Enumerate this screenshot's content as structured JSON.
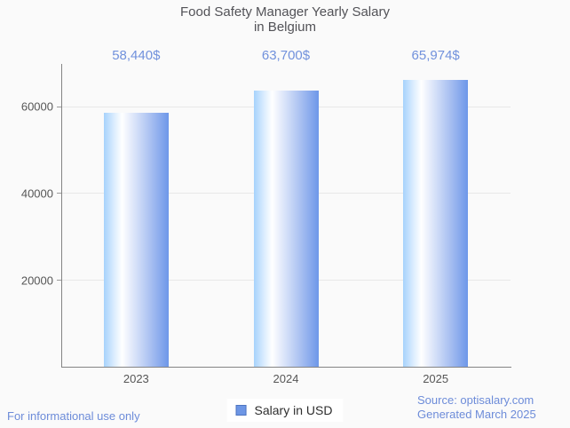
{
  "title": {
    "line1": "Food Safety Manager Yearly Salary",
    "line2": "in Belgium"
  },
  "chart_data": {
    "type": "bar",
    "categories": [
      "2023",
      "2024",
      "2025"
    ],
    "values": [
      58440,
      63700,
      65974
    ],
    "value_labels": [
      "58,440$",
      "63,700$",
      "65,974$"
    ],
    "series": [
      {
        "name": "Salary in USD",
        "values": [
          58440,
          63700,
          65974
        ]
      }
    ],
    "title": "Food Safety Manager Yearly Salary in Belgium",
    "xlabel": "",
    "ylabel": "",
    "ylim": [
      0,
      69740
    ],
    "yticks": [
      20000,
      40000,
      60000
    ],
    "grid": true,
    "legend_position": "bottom"
  },
  "legend": {
    "label": "Salary in USD"
  },
  "footer": {
    "left": "For informational use only",
    "source": "Source: optisalary.com",
    "generated": "Generated March 2025"
  },
  "colors": {
    "background": "#fafafa",
    "title_text": "#525257",
    "value_label": "#7191dc",
    "axis_label": "#565656",
    "axis_line": "#848484",
    "gridline": "#e8e8e8",
    "footer_link": "#6d8cd9",
    "bar_gradient": [
      "#a6d2fc",
      "#ffffff",
      "#6d97e9"
    ],
    "legend_marker_fill": "#6d96e5",
    "legend_marker_border": "#4d74c0"
  }
}
